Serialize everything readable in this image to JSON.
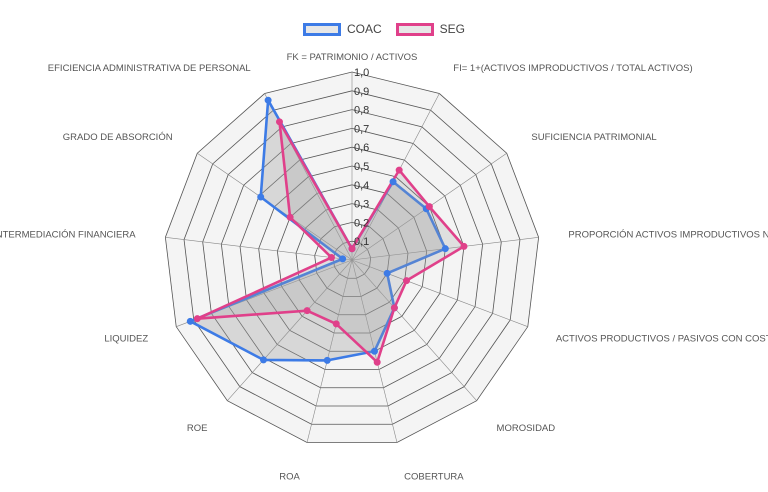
{
  "chart_data": {
    "type": "radar",
    "axes": [
      "FK = PATRIMONIO / ACTIVOS",
      "FI= 1+(ACTIVOS IMPRODUCTIVOS / TOTAL ACTIVOS)",
      "SUFICIENCIA PATRIMONIAL",
      "PROPORCIÓN ACTIVOS IMPRODUCTIVOS NETOS",
      "ACTIVOS PRODUCTIVOS / PASIVOS CON COSTO",
      "MOROSIDAD",
      "COBERTURA",
      "ROA",
      "ROE",
      "LIQUIDEZ",
      "INTERMEDIACIÓN FINANCIERA",
      "GRADO DE ABSORCIÓN",
      "EFICIENCIA ADMINISTRATIVA DE PERSONAL"
    ],
    "ticks": [
      "0,1",
      "0,2",
      "0,3",
      "0,4",
      "0,5",
      "0,6",
      "0,7",
      "0,8",
      "0,9",
      "1,0"
    ],
    "rmin": 0,
    "rmax": 1.0,
    "series": [
      {
        "name": "COAC",
        "color": "#3d7be6",
        "fill": "rgba(160,160,160,0.35)",
        "values": [
          0.06,
          0.47,
          0.48,
          0.5,
          0.2,
          0.34,
          0.5,
          0.55,
          0.71,
          0.92,
          0.05,
          0.59,
          0.96
        ]
      },
      {
        "name": "SEG",
        "color": "#e0408a",
        "fill": "rgba(160,160,160,0.25)",
        "values": [
          0.06,
          0.54,
          0.5,
          0.6,
          0.31,
          0.34,
          0.56,
          0.35,
          0.36,
          0.88,
          0.11,
          0.4,
          0.83
        ]
      }
    ]
  }
}
